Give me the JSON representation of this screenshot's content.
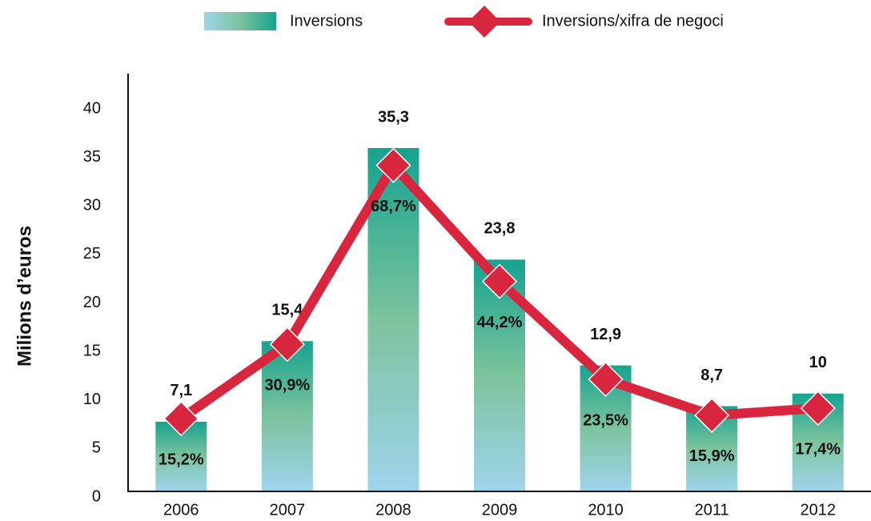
{
  "chart_data": {
    "type": "bar",
    "y_label": "Milions d’euros",
    "categories": [
      "2006",
      "2007",
      "2008",
      "2009",
      "2010",
      "2011",
      "2012"
    ],
    "series": [
      {
        "name": "Inversions",
        "type": "bar",
        "gradient": [
          "#16a38f",
          "#7cc39e",
          "#9fd4ec"
        ],
        "values": [
          7.1,
          15.4,
          35.3,
          23.8,
          12.9,
          8.7,
          10
        ],
        "value_labels": [
          "7,1",
          "15,4",
          "35,3",
          "23,8",
          "12,9",
          "8,7",
          "10"
        ]
      },
      {
        "name": "Inversions/xifra de negoci",
        "type": "line",
        "axis": "y2",
        "color": "#d7263d",
        "values": [
          15.2,
          30.9,
          68.7,
          44.2,
          23.5,
          15.9,
          17.4
        ],
        "value_labels": [
          "15,2%",
          "30,9%",
          "68,7%",
          "44,2%",
          "23,5%",
          "15,9%",
          "17,4%"
        ]
      }
    ],
    "ylim": [
      0,
      40
    ],
    "yticks": [
      0,
      5,
      10,
      15,
      20,
      25,
      30,
      35,
      40
    ],
    "y2lim": [
      0,
      82
    ],
    "legend": "top",
    "grid": false
  }
}
